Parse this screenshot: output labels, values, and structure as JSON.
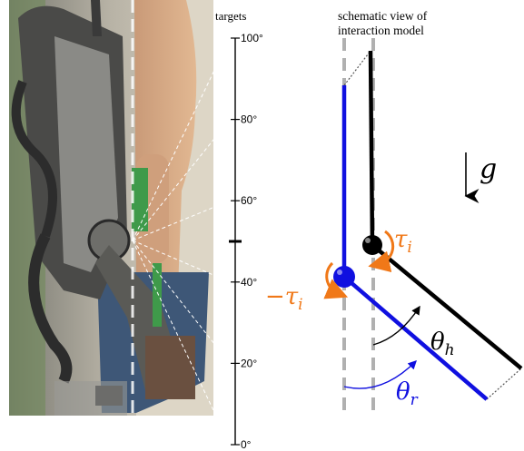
{
  "photo": {
    "description_label": "targets"
  },
  "scale": {
    "ticks": [
      {
        "value": 100,
        "label": "100°"
      },
      {
        "value": 80,
        "label": "80°"
      },
      {
        "value": 60,
        "label": "60°"
      },
      {
        "value": 40,
        "label": "40°"
      },
      {
        "value": 20,
        "label": "20°"
      },
      {
        "value": 0,
        "label": "0°"
      }
    ],
    "mid_marker_value": 50
  },
  "schematic": {
    "title_line1": "schematic view of",
    "title_line2": "interaction model",
    "gravity_symbol": "g",
    "tau_h_label": "τ",
    "tau_h_sub": "i",
    "tau_r_label": "−τ",
    "tau_r_sub": "i",
    "theta_h_label": "θ",
    "theta_h_sub": "h",
    "theta_r_label": "θ",
    "theta_r_sub": "r",
    "colors": {
      "human": "#000000",
      "robot": "#1010e0",
      "torque": "#f07818",
      "axis": "#b0b0b0"
    }
  }
}
